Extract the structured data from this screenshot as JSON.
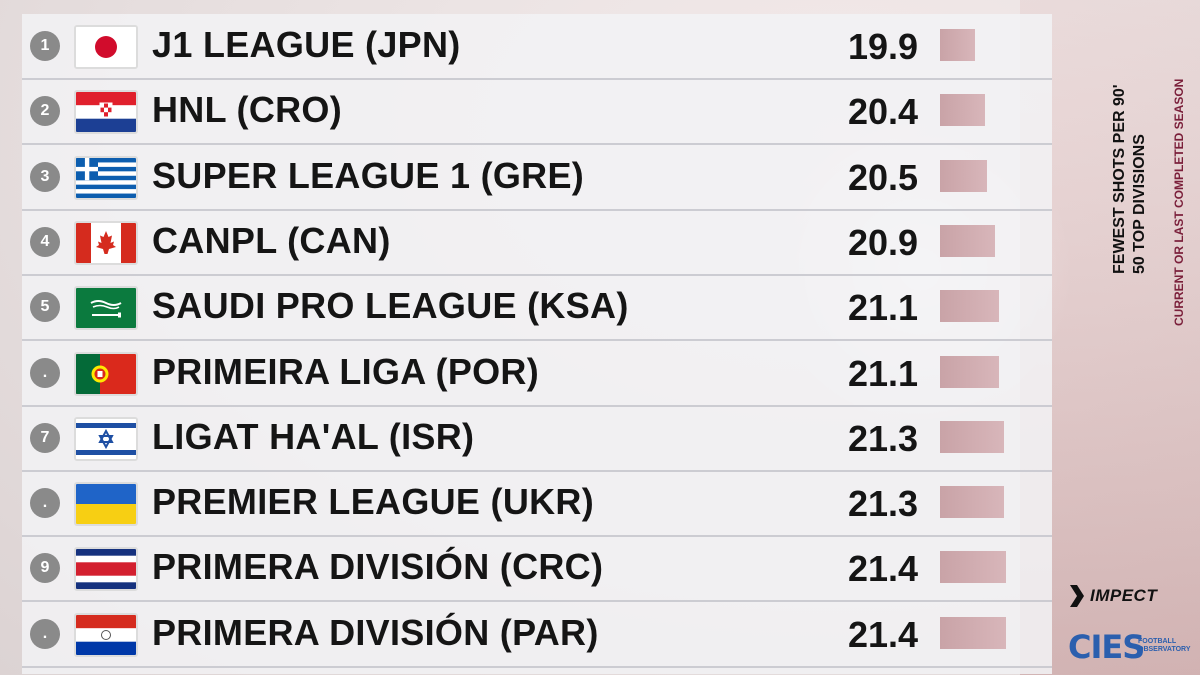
{
  "title_lines": [
    "FEWEST SHOTS PER 90'",
    "50 TOP DIVISIONS"
  ],
  "subtitle": "CURRENT OR LAST COMPLETED SEASON",
  "brands": {
    "impect": "IMPECT",
    "cies": "CIES",
    "cies_sub": "FOOTBALL OBSERVATORY"
  },
  "rows": [
    {
      "rank": "1",
      "flag": "flag-japan",
      "name": "J1 LEAGUE (JPN)",
      "value": "19.9"
    },
    {
      "rank": "2",
      "flag": "flag-croatia",
      "name": "HNL (CRO)",
      "value": "20.4"
    },
    {
      "rank": "3",
      "flag": "flag-greece",
      "name": "SUPER LEAGUE 1 (GRE)",
      "value": "20.5"
    },
    {
      "rank": "4",
      "flag": "flag-canada",
      "name": "CANPL (CAN)",
      "value": "20.9"
    },
    {
      "rank": "5",
      "flag": "flag-saudi-arabia",
      "name": "SAUDI PRO LEAGUE (KSA)",
      "value": "21.1"
    },
    {
      "rank": ".",
      "flag": "flag-portugal",
      "name": "PRIMEIRA LIGA (POR)",
      "value": "21.1"
    },
    {
      "rank": "7",
      "flag": "flag-israel",
      "name": "LIGAT HA'AL (ISR)",
      "value": "21.3"
    },
    {
      "rank": ".",
      "flag": "flag-ukraine",
      "name": "PREMIER LEAGUE (UKR)",
      "value": "21.3"
    },
    {
      "rank": "9",
      "flag": "flag-costa-rica",
      "name": "PRIMERA DIVISIÓN (CRC)",
      "value": "21.4"
    },
    {
      "rank": ".",
      "flag": "flag-paraguay",
      "name": "PRIMERA DIVISIÓN (PAR)",
      "value": "21.4"
    }
  ],
  "chart_data": {
    "type": "bar",
    "orientation": "horizontal",
    "title": "FEWEST SHOTS PER 90' 50 TOP DIVISIONS",
    "subtitle": "CURRENT OR LAST COMPLETED SEASON",
    "categories": [
      "J1 LEAGUE (JPN)",
      "HNL (CRO)",
      "SUPER LEAGUE 1 (GRE)",
      "CANPL (CAN)",
      "SAUDI PRO LEAGUE (KSA)",
      "PRIMEIRA LIGA (POR)",
      "LIGAT HA'AL (ISR)",
      "PREMIER LEAGUE (UKR)",
      "PRIMERA DIVISIÓN (CRC)",
      "PRIMERA DIVISIÓN (PAR)"
    ],
    "values": [
      19.9,
      20.4,
      20.5,
      20.9,
      21.1,
      21.1,
      21.3,
      21.3,
      21.4,
      21.4
    ],
    "bar_color": "#d0aeb2",
    "grid": false,
    "legend": "none"
  }
}
